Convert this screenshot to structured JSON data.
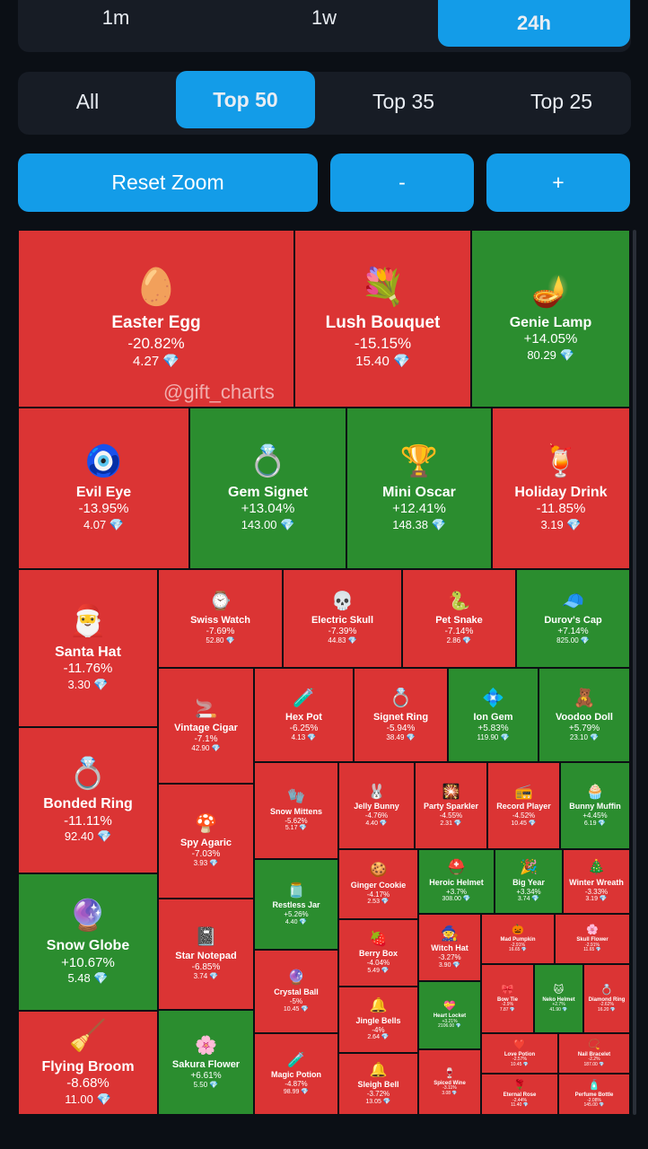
{
  "timeframes": {
    "t1m": "1m",
    "t1w": "1w",
    "t24h": "24h",
    "selected": "24h"
  },
  "filters": {
    "all": "All",
    "top50": "Top 50",
    "top35": "Top 35",
    "top25": "Top 25",
    "selected": "Top 50"
  },
  "zoom": {
    "reset": "Reset Zoom",
    "minus": "-",
    "plus": "+"
  },
  "watermark": "@gift_charts",
  "colors": {
    "up": "#2b8d2f",
    "down": "#db3434",
    "accent": "#139ce8"
  },
  "diamond_icon": "💎",
  "tiles": [
    {
      "name": "Easter Egg",
      "change": "-20.82%",
      "price": "4.27",
      "icon": "🥚"
    },
    {
      "name": "Lush Bouquet",
      "change": "-15.15%",
      "price": "15.40",
      "icon": "💐"
    },
    {
      "name": "Genie Lamp",
      "change": "+14.05%",
      "price": "80.29",
      "icon": "🪔"
    },
    {
      "name": "Evil Eye",
      "change": "-13.95%",
      "price": "4.07",
      "icon": "🧿"
    },
    {
      "name": "Gem Signet",
      "change": "+13.04%",
      "price": "143.00",
      "icon": "💍"
    },
    {
      "name": "Mini Oscar",
      "change": "+12.41%",
      "price": "148.38",
      "icon": "🏆"
    },
    {
      "name": "Holiday Drink",
      "change": "-11.85%",
      "price": "3.19",
      "icon": "🍹"
    },
    {
      "name": "Santa Hat",
      "change": "-11.76%",
      "price": "3.30",
      "icon": "🎅"
    },
    {
      "name": "Swiss Watch",
      "change": "-7.69%",
      "price": "52.80",
      "icon": "⌚"
    },
    {
      "name": "Electric Skull",
      "change": "-7.39%",
      "price": "44.83",
      "icon": "💀"
    },
    {
      "name": "Pet Snake",
      "change": "-7.14%",
      "price": "2.86",
      "icon": "🐍"
    },
    {
      "name": "Durov's Cap",
      "change": "+7.14%",
      "price": "825.00",
      "icon": "🧢"
    },
    {
      "name": "Vintage Cigar",
      "change": "-7.1%",
      "price": "42.90",
      "icon": "🚬"
    },
    {
      "name": "Hex Pot",
      "change": "-6.25%",
      "price": "4.13",
      "icon": "🧪"
    },
    {
      "name": "Signet Ring",
      "change": "-5.94%",
      "price": "38.49",
      "icon": "💍"
    },
    {
      "name": "Ion Gem",
      "change": "+5.83%",
      "price": "119.90",
      "icon": "💠"
    },
    {
      "name": "Voodoo Doll",
      "change": "+5.79%",
      "price": "23.10",
      "icon": "🧸"
    },
    {
      "name": "Bonded Ring",
      "change": "-11.11%",
      "price": "92.40",
      "icon": "💍"
    },
    {
      "name": "Spy Agaric",
      "change": "-7.03%",
      "price": "3.93",
      "icon": "🍄"
    },
    {
      "name": "Snow Mittens",
      "change": "-5.62%",
      "price": "5.17",
      "icon": "🧤"
    },
    {
      "name": "Jelly Bunny",
      "change": "-4.76%",
      "price": "4.40",
      "icon": "🐰"
    },
    {
      "name": "Party Sparkler",
      "change": "-4.55%",
      "price": "2.31",
      "icon": "🎇"
    },
    {
      "name": "Record Player",
      "change": "-4.52%",
      "price": "10.45",
      "icon": "📻"
    },
    {
      "name": "Bunny Muffin",
      "change": "+4.45%",
      "price": "6.19",
      "icon": "🧁"
    },
    {
      "name": "Restless Jar",
      "change": "+5.26%",
      "price": "4.40",
      "icon": "🫙"
    },
    {
      "name": "Ginger Cookie",
      "change": "-4.17%",
      "price": "2.53",
      "icon": "🍪"
    },
    {
      "name": "Heroic Helmet",
      "change": "+3.7%",
      "price": "308.00",
      "icon": "⛑️"
    },
    {
      "name": "Big Year",
      "change": "+3.34%",
      "price": "3.74",
      "icon": "🎉"
    },
    {
      "name": "Winter Wreath",
      "change": "-3.33%",
      "price": "3.19",
      "icon": "🎄"
    },
    {
      "name": "Snow Globe",
      "change": "+10.67%",
      "price": "5.48",
      "icon": "🔮"
    },
    {
      "name": "Star Notepad",
      "change": "-6.85%",
      "price": "3.74",
      "icon": "📓"
    },
    {
      "name": "Berry Box",
      "change": "-4.04%",
      "price": "5.49",
      "icon": "🍓"
    },
    {
      "name": "Witch Hat",
      "change": "-3.27%",
      "price": "3.90",
      "icon": "🧙"
    },
    {
      "name": "Mad Pumpkin",
      "change": "-2.91%",
      "price": "16.65",
      "icon": "🎃"
    },
    {
      "name": "Skull Flower",
      "change": "-2.91%",
      "price": "11.65",
      "icon": "🌸"
    },
    {
      "name": "Crystal Ball",
      "change": "-5%",
      "price": "10.45",
      "icon": "🔮"
    },
    {
      "name": "Bow Tie",
      "change": "-2.9%",
      "price": "7.87",
      "icon": "🎀"
    },
    {
      "name": "Neko Helmet",
      "change": "+2.7%",
      "price": "41.90",
      "icon": "🐱"
    },
    {
      "name": "Diamond Ring",
      "change": "-2.62%",
      "price": "16.20",
      "icon": "💍"
    },
    {
      "name": "Jingle Bells",
      "change": "-4%",
      "price": "2.64",
      "icon": "🔔"
    },
    {
      "name": "Heart Locket",
      "change": "+3.21%",
      "price": "2106.00",
      "icon": "💝"
    },
    {
      "name": "Flying Broom",
      "change": "-8.68%",
      "price": "11.00",
      "icon": "🧹"
    },
    {
      "name": "Sakura Flower",
      "change": "+6.61%",
      "price": "5.50",
      "icon": "🌸"
    },
    {
      "name": "Magic Potion",
      "change": "-4.87%",
      "price": "98.99",
      "icon": "🧪"
    },
    {
      "name": "Sleigh Bell",
      "change": "-3.72%",
      "price": "13.05",
      "icon": "🔔"
    },
    {
      "name": "Spiced Wine",
      "change": "-3.11%",
      "price": "3.08",
      "icon": "🍷"
    },
    {
      "name": "Love Potion",
      "change": "-2.57%",
      "price": "10.45",
      "icon": "❤️"
    },
    {
      "name": "Nail Bracelet",
      "change": "-2.2%",
      "price": "187.00",
      "icon": "📿"
    },
    {
      "name": "Eternal Rose",
      "change": "-2.44%",
      "price": "11.40",
      "icon": "🌹"
    },
    {
      "name": "Perfume Bottle",
      "change": "-2.08%",
      "price": "145.00",
      "icon": "🧴"
    }
  ]
}
